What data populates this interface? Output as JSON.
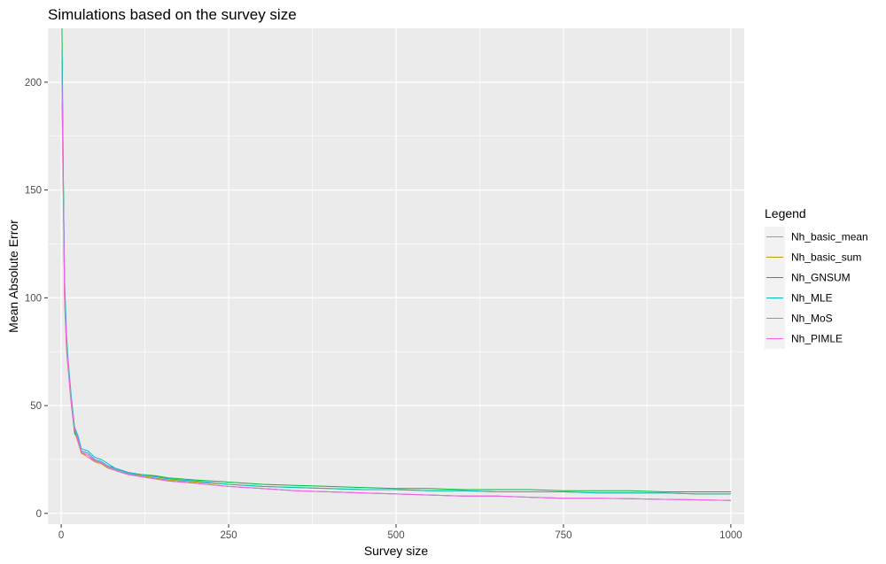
{
  "chart_data": {
    "type": "line",
    "title": "Simulations based on the survey size",
    "xlabel": "Survey size",
    "ylabel": "Mean Absolute Error",
    "xlim": [
      -20,
      1020
    ],
    "ylim": [
      -5,
      225
    ],
    "xticks": [
      0,
      250,
      500,
      750,
      1000
    ],
    "yticks": [
      0,
      50,
      100,
      150,
      200
    ],
    "grid": true,
    "legend": {
      "title": "Legend",
      "position": "right"
    },
    "x": [
      1,
      3,
      5,
      8,
      10,
      15,
      20,
      25,
      30,
      40,
      50,
      60,
      70,
      80,
      90,
      100,
      120,
      140,
      160,
      180,
      200,
      250,
      300,
      350,
      400,
      450,
      500,
      550,
      600,
      650,
      700,
      750,
      800,
      850,
      900,
      950,
      1000
    ],
    "series": [
      {
        "name": "Nh_basic_mean",
        "color": "#F8766D",
        "values": [
          190,
          150,
          98,
          75,
          68,
          50,
          38,
          33,
          28,
          26,
          24,
          23,
          21,
          20,
          19,
          18,
          17,
          16,
          15,
          14.5,
          14,
          12.5,
          11.5,
          10.5,
          10,
          9.5,
          9,
          8.5,
          8,
          8,
          7.5,
          7,
          7,
          6.8,
          6.5,
          6.3,
          6
        ]
      },
      {
        "name": "Nh_basic_sum",
        "color": "#B79F00",
        "values": [
          210,
          155,
          100,
          76,
          69,
          51,
          38,
          34,
          28,
          27,
          24,
          23,
          21,
          20,
          19,
          18.5,
          17.5,
          16.5,
          15.5,
          15,
          14.5,
          13.5,
          12.5,
          12,
          11.5,
          11,
          11,
          10.5,
          10.5,
          10,
          10,
          10,
          9.5,
          9.5,
          9.5,
          9,
          9
        ]
      },
      {
        "name": "Nh_GNSUM",
        "color": "#00BA38",
        "values": [
          225,
          160,
          105,
          80,
          70,
          52,
          37,
          35,
          29,
          28,
          25,
          24,
          22,
          21,
          20,
          19,
          18,
          17.5,
          16.5,
          16,
          15.5,
          14.5,
          13.5,
          13,
          12.5,
          12,
          11.5,
          11.5,
          11,
          11,
          11,
          10.5,
          10.5,
          10.5,
          10,
          10,
          10
        ]
      },
      {
        "name": "Nh_MLE",
        "color": "#00BFC4",
        "values": [
          215,
          158,
          108,
          82,
          72,
          54,
          40,
          36,
          30,
          29,
          26,
          25,
          23,
          21,
          20,
          19,
          18,
          17,
          16,
          15.5,
          15,
          13.5,
          12.5,
          12,
          11.5,
          11,
          11,
          10.5,
          10.5,
          10,
          10,
          10,
          9.5,
          9.5,
          9.5,
          9,
          9
        ]
      },
      {
        "name": "Nh_MoS",
        "color": "#619CFF",
        "values": [
          205,
          152,
          102,
          78,
          70,
          52,
          39,
          35,
          29,
          28,
          25,
          24,
          22,
          20.5,
          19.5,
          18.5,
          17,
          16,
          15,
          14.5,
          14,
          12.5,
          11.5,
          10.5,
          10,
          9.5,
          9,
          8.5,
          8,
          8,
          7.5,
          7,
          7,
          6.8,
          6.5,
          6.3,
          6
        ]
      },
      {
        "name": "Nh_PIMLE",
        "color": "#F564E3",
        "values": [
          200,
          150,
          100,
          77,
          69,
          51,
          39,
          34,
          28.5,
          27,
          24.5,
          23.5,
          21.5,
          20,
          19,
          18,
          17,
          16,
          15,
          14.5,
          14,
          12.5,
          11.5,
          10.5,
          10,
          9.5,
          9,
          8.5,
          8,
          8,
          7.5,
          7,
          7,
          6.8,
          6.5,
          6.3,
          6
        ]
      }
    ]
  }
}
